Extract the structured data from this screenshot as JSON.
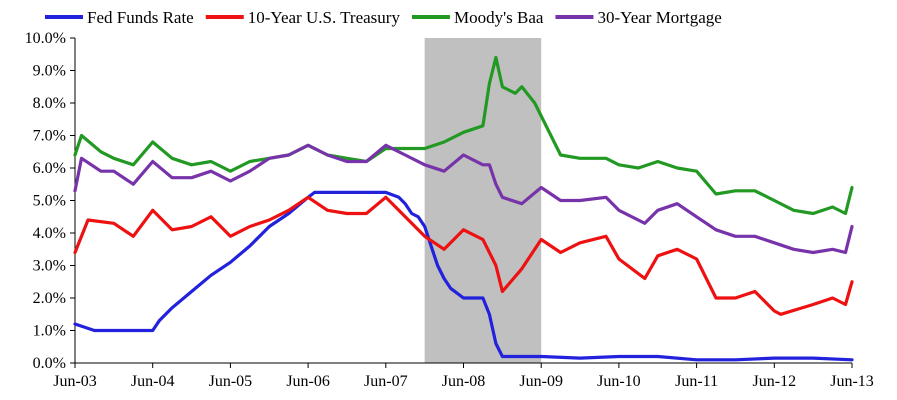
{
  "chart_data": {
    "type": "line",
    "title": "",
    "xlabel": "",
    "ylabel": "",
    "x_ticks": [
      "Jun-03",
      "Jun-04",
      "Jun-05",
      "Jun-06",
      "Jun-07",
      "Jun-08",
      "Jun-09",
      "Jun-10",
      "Jun-11",
      "Jun-12",
      "Jun-13"
    ],
    "y_ticks": [
      "0.0%",
      "1.0%",
      "2.0%",
      "3.0%",
      "4.0%",
      "5.0%",
      "6.0%",
      "7.0%",
      "8.0%",
      "9.0%",
      "10.0%"
    ],
    "xlim": [
      "2003-06",
      "2013-06"
    ],
    "ylim": [
      0,
      10
    ],
    "grid": false,
    "legend_position": "top",
    "recession_band": {
      "start": "2007-12",
      "end": "2009-06",
      "color": "#c0c0c0"
    },
    "series": [
      {
        "name": "Fed Funds Rate",
        "color": "#2222dd",
        "x": [
          "2003-06",
          "2003-09",
          "2003-12",
          "2004-03",
          "2004-06",
          "2004-07",
          "2004-09",
          "2004-12",
          "2005-03",
          "2005-06",
          "2005-09",
          "2005-12",
          "2006-03",
          "2006-06",
          "2006-07",
          "2006-12",
          "2007-03",
          "2007-06",
          "2007-08",
          "2007-09",
          "2007-10",
          "2007-11",
          "2007-12",
          "2008-01",
          "2008-02",
          "2008-03",
          "2008-04",
          "2008-06",
          "2008-08",
          "2008-09",
          "2008-10",
          "2008-11",
          "2008-12",
          "2009-03",
          "2009-06",
          "2009-12",
          "2010-06",
          "2010-12",
          "2011-06",
          "2011-12",
          "2012-06",
          "2012-12",
          "2013-06"
        ],
        "y": [
          1.2,
          1.0,
          1.0,
          1.0,
          1.0,
          1.3,
          1.7,
          2.2,
          2.7,
          3.1,
          3.6,
          4.2,
          4.6,
          5.1,
          5.25,
          5.25,
          5.25,
          5.25,
          5.1,
          4.9,
          4.6,
          4.5,
          4.2,
          3.6,
          3.0,
          2.6,
          2.3,
          2.0,
          2.0,
          2.0,
          1.5,
          0.6,
          0.2,
          0.2,
          0.2,
          0.15,
          0.2,
          0.2,
          0.1,
          0.1,
          0.15,
          0.15,
          0.1
        ]
      },
      {
        "name": "10-Year U.S. Treasury",
        "color": "#ee1111",
        "x": [
          "2003-06",
          "2003-08",
          "2003-12",
          "2004-03",
          "2004-06",
          "2004-09",
          "2004-12",
          "2005-03",
          "2005-06",
          "2005-09",
          "2005-12",
          "2006-03",
          "2006-06",
          "2006-09",
          "2006-12",
          "2007-03",
          "2007-06",
          "2007-08",
          "2007-11",
          "2007-12",
          "2008-03",
          "2008-06",
          "2008-09",
          "2008-11",
          "2008-12",
          "2009-03",
          "2009-06",
          "2009-09",
          "2009-12",
          "2010-04",
          "2010-06",
          "2010-10",
          "2010-12",
          "2011-03",
          "2011-06",
          "2011-09",
          "2011-12",
          "2012-03",
          "2012-06",
          "2012-07",
          "2012-12",
          "2013-03",
          "2013-05",
          "2013-06"
        ],
        "y": [
          3.4,
          4.4,
          4.3,
          3.9,
          4.7,
          4.1,
          4.2,
          4.5,
          3.9,
          4.2,
          4.4,
          4.7,
          5.1,
          4.7,
          4.6,
          4.6,
          5.1,
          4.7,
          4.1,
          3.9,
          3.5,
          4.1,
          3.8,
          3.0,
          2.2,
          2.9,
          3.8,
          3.4,
          3.7,
          3.9,
          3.2,
          2.6,
          3.3,
          3.5,
          3.2,
          2.0,
          2.0,
          2.2,
          1.6,
          1.5,
          1.8,
          2.0,
          1.8,
          2.5
        ]
      },
      {
        "name": "Moody's Baa",
        "color": "#229922",
        "x": [
          "2003-06",
          "2003-07",
          "2003-10",
          "2003-12",
          "2004-03",
          "2004-06",
          "2004-09",
          "2004-12",
          "2005-03",
          "2005-06",
          "2005-09",
          "2005-12",
          "2006-03",
          "2006-06",
          "2006-09",
          "2006-12",
          "2007-03",
          "2007-06",
          "2007-09",
          "2007-12",
          "2008-03",
          "2008-06",
          "2008-09",
          "2008-10",
          "2008-11",
          "2008-12",
          "2009-02",
          "2009-03",
          "2009-05",
          "2009-06",
          "2009-09",
          "2009-12",
          "2010-04",
          "2010-06",
          "2010-09",
          "2010-12",
          "2011-03",
          "2011-06",
          "2011-09",
          "2011-12",
          "2012-03",
          "2012-06",
          "2012-09",
          "2012-12",
          "2013-03",
          "2013-05",
          "2013-06"
        ],
        "y": [
          6.4,
          7.0,
          6.5,
          6.3,
          6.1,
          6.8,
          6.3,
          6.1,
          6.2,
          5.9,
          6.2,
          6.3,
          6.4,
          6.7,
          6.4,
          6.3,
          6.2,
          6.6,
          6.6,
          6.6,
          6.8,
          7.1,
          7.3,
          8.6,
          9.4,
          8.5,
          8.3,
          8.5,
          8.0,
          7.6,
          6.4,
          6.3,
          6.3,
          6.1,
          6.0,
          6.2,
          6.0,
          5.9,
          5.2,
          5.3,
          5.3,
          5.0,
          4.7,
          4.6,
          4.8,
          4.6,
          5.4
        ]
      },
      {
        "name": "30-Year Mortgage",
        "color": "#7733aa",
        "x": [
          "2003-06",
          "2003-07",
          "2003-10",
          "2003-12",
          "2004-03",
          "2004-06",
          "2004-09",
          "2004-12",
          "2005-03",
          "2005-06",
          "2005-09",
          "2005-12",
          "2006-03",
          "2006-06",
          "2006-09",
          "2006-12",
          "2007-03",
          "2007-06",
          "2007-09",
          "2007-12",
          "2008-03",
          "2008-06",
          "2008-09",
          "2008-10",
          "2008-11",
          "2008-12",
          "2009-03",
          "2009-06",
          "2009-09",
          "2009-12",
          "2010-04",
          "2010-06",
          "2010-10",
          "2010-12",
          "2011-03",
          "2011-06",
          "2011-09",
          "2011-12",
          "2012-03",
          "2012-06",
          "2012-09",
          "2012-12",
          "2013-03",
          "2013-05",
          "2013-06"
        ],
        "y": [
          5.3,
          6.3,
          5.9,
          5.9,
          5.5,
          6.2,
          5.7,
          5.7,
          5.9,
          5.6,
          5.9,
          6.3,
          6.4,
          6.7,
          6.4,
          6.2,
          6.2,
          6.7,
          6.4,
          6.1,
          5.9,
          6.4,
          6.1,
          6.1,
          5.5,
          5.1,
          4.9,
          5.4,
          5.0,
          5.0,
          5.1,
          4.7,
          4.3,
          4.7,
          4.9,
          4.5,
          4.1,
          3.9,
          3.9,
          3.7,
          3.5,
          3.4,
          3.5,
          3.4,
          4.2
        ]
      }
    ]
  }
}
